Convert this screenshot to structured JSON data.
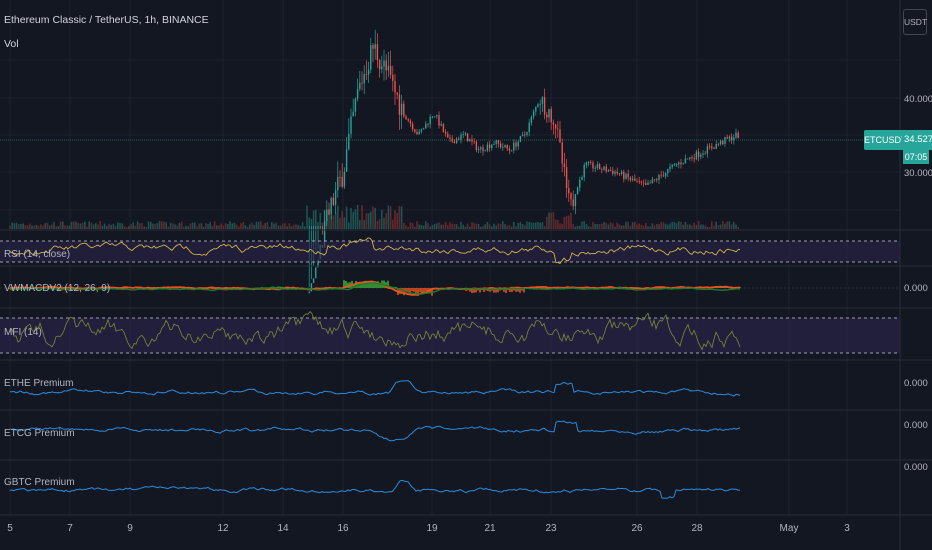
{
  "header": {
    "title": "Ethereum Classic / TetherUS, 1h, BINANCE",
    "volume_label": "Vol"
  },
  "price_axis": {
    "currency": "USDT",
    "ticks": [
      "40.000",
      "30.000"
    ]
  },
  "last_price": {
    "symbol": "ETCUSDT",
    "value": "34.527",
    "countdown": "07:05",
    "color": "#26a69a"
  },
  "panes": [
    {
      "label": "RSI (14, close)",
      "axis_value": ""
    },
    {
      "label": "VWMACDV2 (12, 26, 9)",
      "axis_value": "0.000"
    },
    {
      "label": "MFI (14)",
      "axis_value": ""
    },
    {
      "label": "ETHE Premium",
      "axis_value": "0.000"
    },
    {
      "label": "ETCG Premium",
      "axis_value": "0.000"
    },
    {
      "label": "GBTC Premium",
      "axis_value": "0.000"
    }
  ],
  "time_axis": [
    "5",
    "7",
    "9",
    "12",
    "14",
    "16",
    "19",
    "21",
    "23",
    "26",
    "28",
    "May",
    "3"
  ],
  "colors": {
    "background": "#131722",
    "up": "#26a69a",
    "down": "#ef5350",
    "rsi_line": "#e6c34d",
    "mfi_line": "#7b8a3a",
    "premium_line": "#2a8bdc",
    "macd_up": "#3aa83a",
    "macd_down": "#e8531f",
    "band_fill": "#2a2347"
  },
  "chart_data": {
    "type": "line",
    "title": "Ethereum Classic / TetherUS, 1h, BINANCE",
    "x_ticks": [
      "5",
      "7",
      "9",
      "12",
      "14",
      "16",
      "19",
      "21",
      "23",
      "26",
      "28",
      "May",
      "3"
    ],
    "y_ticks": [
      30,
      40
    ],
    "y_unit": "USDT",
    "last_value": 34.527,
    "price_profile": {
      "x_day": [
        5,
        12,
        14.5,
        15,
        15.5,
        16,
        16.5,
        17,
        17.5,
        18,
        18.5,
        19,
        19.5,
        20,
        20.5,
        21,
        21.5,
        22,
        22.5,
        23,
        23.5,
        24,
        25,
        26,
        27,
        28,
        29,
        29.6
      ],
      "close": [
        10,
        10.5,
        11,
        15,
        24,
        30,
        41,
        47,
        43,
        38,
        35,
        38,
        34,
        35,
        33,
        34,
        33,
        35,
        40,
        37,
        25,
        31,
        30,
        28,
        31,
        33,
        35,
        34.5
      ]
    },
    "series": [
      {
        "name": "RSI (14, close)",
        "band": [
          30,
          70
        ]
      },
      {
        "name": "VWMACDV2 (12, 26, 9)"
      },
      {
        "name": "MFI (14)",
        "band": [
          20,
          80
        ]
      },
      {
        "name": "ETHE Premium"
      },
      {
        "name": "ETCG Premium"
      },
      {
        "name": "GBTC Premium"
      }
    ]
  }
}
